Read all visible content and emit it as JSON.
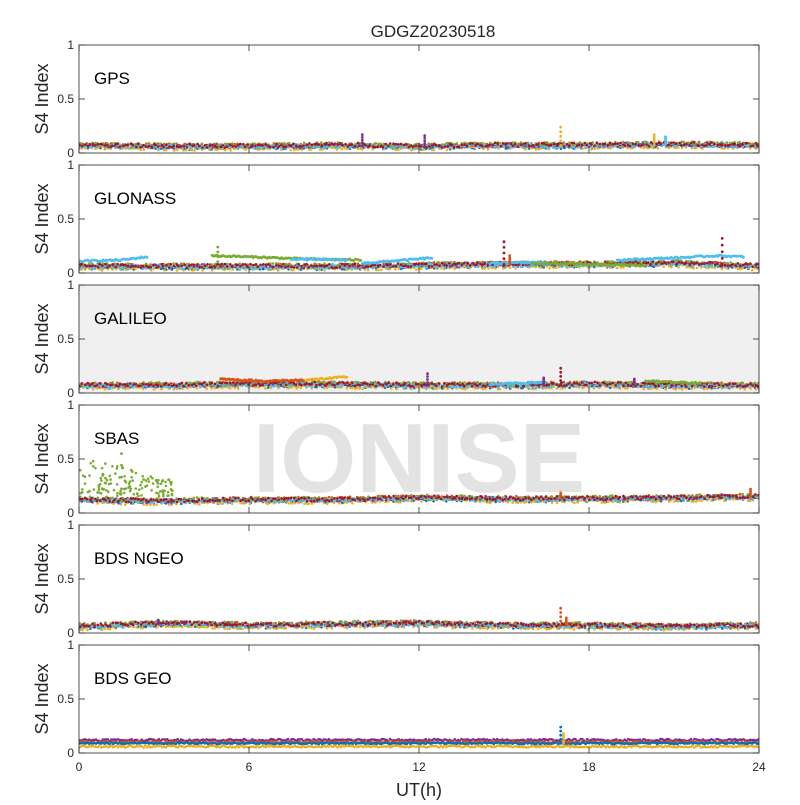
{
  "chart_data": {
    "type": "scatter",
    "title": "GDGZ20230518",
    "xlabel": "UT(h)",
    "ylabel": "S4 Index",
    "xlim": [
      0,
      24
    ],
    "ylim": [
      0,
      1
    ],
    "xticks": [
      "0",
      "6",
      "12",
      "18",
      "24"
    ],
    "yticks": [
      "0",
      "0.5",
      "1"
    ],
    "watermark": "IONISE",
    "series_colors": [
      "#0072BD",
      "#D95319",
      "#EDB120",
      "#7E2F8E",
      "#77AC30",
      "#4DBEEE",
      "#A2142F"
    ],
    "panels": [
      {
        "label": "GPS",
        "baseline": [
          [
            0,
            0.07
          ],
          [
            3,
            0.06
          ],
          [
            6,
            0.06
          ],
          [
            9,
            0.07
          ],
          [
            12,
            0.06
          ],
          [
            15,
            0.07
          ],
          [
            18,
            0.07
          ],
          [
            21,
            0.08
          ],
          [
            24,
            0.07
          ]
        ],
        "spikes": [
          {
            "x": 17.0,
            "y": 0.24,
            "series": 2
          },
          {
            "x": 10.0,
            "y": 0.17,
            "series": 3
          },
          {
            "x": 12.2,
            "y": 0.16,
            "series": 3
          },
          {
            "x": 20.3,
            "y": 0.17,
            "series": 2
          },
          {
            "x": 20.7,
            "y": 0.15,
            "series": 5
          }
        ]
      },
      {
        "label": "GLONASS",
        "baseline": [
          [
            0,
            0.06
          ],
          [
            3,
            0.06
          ],
          [
            6,
            0.06
          ],
          [
            9,
            0.06
          ],
          [
            12,
            0.07
          ],
          [
            15,
            0.08
          ],
          [
            18,
            0.08
          ],
          [
            21,
            0.09
          ],
          [
            24,
            0.06
          ]
        ],
        "tracks": [
          {
            "series": 5,
            "points": [
              [
                0,
                0.11
              ],
              [
                1.5,
                0.12
              ],
              [
                2.4,
                0.15
              ]
            ]
          },
          {
            "series": 4,
            "points": [
              [
                4.7,
                0.16
              ],
              [
                6,
                0.15
              ],
              [
                8,
                0.13
              ],
              [
                10,
                0.12
              ]
            ]
          },
          {
            "series": 5,
            "points": [
              [
                7.5,
                0.13
              ],
              [
                9.5,
                0.12
              ]
            ]
          },
          {
            "series": 5,
            "points": [
              [
                10,
                0.09
              ],
              [
                11.5,
                0.12
              ],
              [
                12.5,
                0.14
              ]
            ]
          },
          {
            "series": 5,
            "points": [
              [
                14.5,
                0.09
              ],
              [
                16.5,
                0.1
              ]
            ]
          },
          {
            "series": 4,
            "points": [
              [
                16,
                0.09
              ],
              [
                18.5,
                0.08
              ],
              [
                20,
                0.07
              ]
            ]
          },
          {
            "series": 5,
            "points": [
              [
                19,
                0.12
              ],
              [
                21,
                0.14
              ],
              [
                22.5,
                0.16
              ],
              [
                23.5,
                0.15
              ]
            ]
          }
        ],
        "spikes": [
          {
            "x": 15.0,
            "y": 0.29,
            "series": 6
          },
          {
            "x": 22.7,
            "y": 0.32,
            "series": 6
          },
          {
            "x": 4.9,
            "y": 0.24,
            "series": 4
          },
          {
            "x": 15.2,
            "y": 0.16,
            "series": 1
          }
        ]
      },
      {
        "label": "GALILEO",
        "baseline": [
          [
            0,
            0.07
          ],
          [
            3,
            0.07
          ],
          [
            6,
            0.08
          ],
          [
            9,
            0.08
          ],
          [
            12,
            0.07
          ],
          [
            15,
            0.07
          ],
          [
            18,
            0.08
          ],
          [
            21,
            0.07
          ],
          [
            24,
            0.07
          ]
        ],
        "tracks": [
          {
            "series": 1,
            "points": [
              [
                5,
                0.13
              ],
              [
                6.5,
                0.11
              ],
              [
                8,
                0.12
              ]
            ]
          },
          {
            "series": 2,
            "points": [
              [
                8,
                0.12
              ],
              [
                9.5,
                0.15
              ]
            ]
          },
          {
            "series": 5,
            "points": [
              [
                14.5,
                0.08
              ],
              [
                16.5,
                0.1
              ]
            ]
          },
          {
            "series": 4,
            "points": [
              [
                20,
                0.11
              ],
              [
                22,
                0.09
              ]
            ]
          }
        ],
        "spikes": [
          {
            "x": 17.0,
            "y": 0.23,
            "series": 6
          },
          {
            "x": 12.3,
            "y": 0.18,
            "series": 3
          },
          {
            "x": 16.4,
            "y": 0.14,
            "series": 3
          },
          {
            "x": 19.6,
            "y": 0.13,
            "series": 3
          }
        ]
      },
      {
        "label": "SBAS",
        "baseline": [
          [
            0,
            0.12
          ],
          [
            3,
            0.11
          ],
          [
            6,
            0.12
          ],
          [
            9,
            0.12
          ],
          [
            12,
            0.14
          ],
          [
            15,
            0.13
          ],
          [
            18,
            0.13
          ],
          [
            21,
            0.14
          ],
          [
            24,
            0.15
          ]
        ],
        "scatter_cloud": {
          "series": 4,
          "x_range": [
            0,
            3.3
          ],
          "y_range": [
            0.15,
            0.52
          ],
          "count": 130
        },
        "spikes": [
          {
            "x": 1.5,
            "y": 0.55,
            "series": 4
          },
          {
            "x": 17.0,
            "y": 0.2,
            "series": 1
          },
          {
            "x": 23.7,
            "y": 0.22,
            "series": 1
          }
        ]
      },
      {
        "label": "BDS NGEO",
        "baseline": [
          [
            0,
            0.06
          ],
          [
            3,
            0.09
          ],
          [
            6,
            0.07
          ],
          [
            9,
            0.08
          ],
          [
            12,
            0.09
          ],
          [
            15,
            0.07
          ],
          [
            18,
            0.07
          ],
          [
            21,
            0.06
          ],
          [
            24,
            0.07
          ]
        ],
        "spikes": [
          {
            "x": 17.0,
            "y": 0.23,
            "series": 1
          },
          {
            "x": 17.2,
            "y": 0.14,
            "series": 1
          },
          {
            "x": 2.8,
            "y": 0.12,
            "series": 3
          }
        ]
      },
      {
        "label": "BDS GEO",
        "baseline": [
          [
            0,
            0.09
          ],
          [
            6,
            0.09
          ],
          [
            12,
            0.09
          ],
          [
            18,
            0.09
          ],
          [
            24,
            0.09
          ]
        ],
        "flat_levels": [
          {
            "series": 3,
            "y": 0.12
          },
          {
            "series": 1,
            "y": 0.1
          },
          {
            "series": 0,
            "y": 0.09
          },
          {
            "series": 2,
            "y": 0.06
          }
        ],
        "spikes": [
          {
            "x": 17.0,
            "y": 0.24,
            "series": 0
          },
          {
            "x": 17.1,
            "y": 0.18,
            "series": 2
          }
        ]
      }
    ]
  }
}
